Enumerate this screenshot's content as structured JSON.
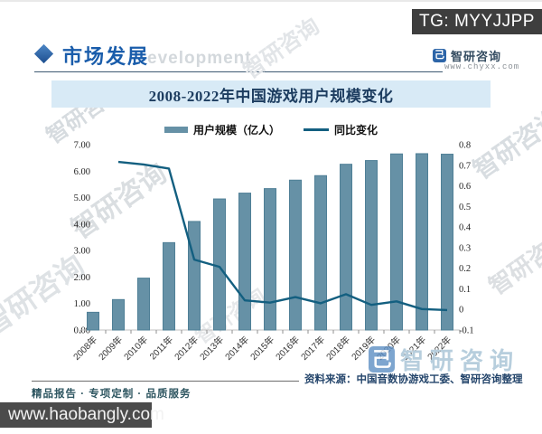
{
  "overlay": {
    "tg_badge": "TG: MYYJJPP",
    "site_badge": "www.haobangly.com"
  },
  "header": {
    "section_title": "市场发展",
    "watermark_word": "evelopment",
    "brand": {
      "logo_glyph": "己",
      "name": "智研咨询",
      "url": "www.chyxx.com"
    }
  },
  "chart_data": {
    "type": "bar+line",
    "title": "2008-2022年中国游戏用户规模变化",
    "categories": [
      "2008年",
      "2009年",
      "2010年",
      "2011年",
      "2012年",
      "2013年",
      "2014年",
      "2015年",
      "2016年",
      "2017年",
      "2018年",
      "2019年",
      "2020年",
      "2021年",
      "2022年"
    ],
    "series": [
      {
        "name": "用户规模（亿人）",
        "type": "bar",
        "axis": "left",
        "color": "#6691a6",
        "edge_color": "#4f7f96",
        "values": [
          0.67,
          1.15,
          1.96,
          3.3,
          4.1,
          4.95,
          5.17,
          5.34,
          5.66,
          5.83,
          6.26,
          6.4,
          6.65,
          6.66,
          6.64
        ]
      },
      {
        "name": "同比变化",
        "type": "line",
        "axis": "right",
        "color": "#135f80",
        "values": [
          null,
          0.716,
          0.704,
          0.684,
          0.242,
          0.207,
          0.044,
          0.033,
          0.06,
          0.03,
          0.074,
          0.022,
          0.039,
          0.002,
          -0.003
        ]
      }
    ],
    "left_axis": {
      "min": 0,
      "max": 7,
      "labels": [
        "0.00",
        "1.00",
        "2.00",
        "3.00",
        "4.00",
        "5.00",
        "6.00",
        "7.00"
      ]
    },
    "right_axis": {
      "min": -0.1,
      "max": 0.8,
      "labels": [
        "-0.1",
        "0",
        "0.1",
        "0.2",
        "0.3",
        "0.4",
        "0.5",
        "0.6",
        "0.7",
        "0.8"
      ]
    },
    "legend_position": "top",
    "grid": false,
    "axis_color": "#c0c0c0",
    "tick_color": "#8f8f8f",
    "label_color": "#333333"
  },
  "watermark": {
    "brand_text": "智研咨询",
    "big_logo_glyph": "己"
  },
  "footer": {
    "source": "资料来源：中国音数协游戏工委、智研咨询整理",
    "tagline": "精品报告 · 专项定制 · 品质服务"
  }
}
